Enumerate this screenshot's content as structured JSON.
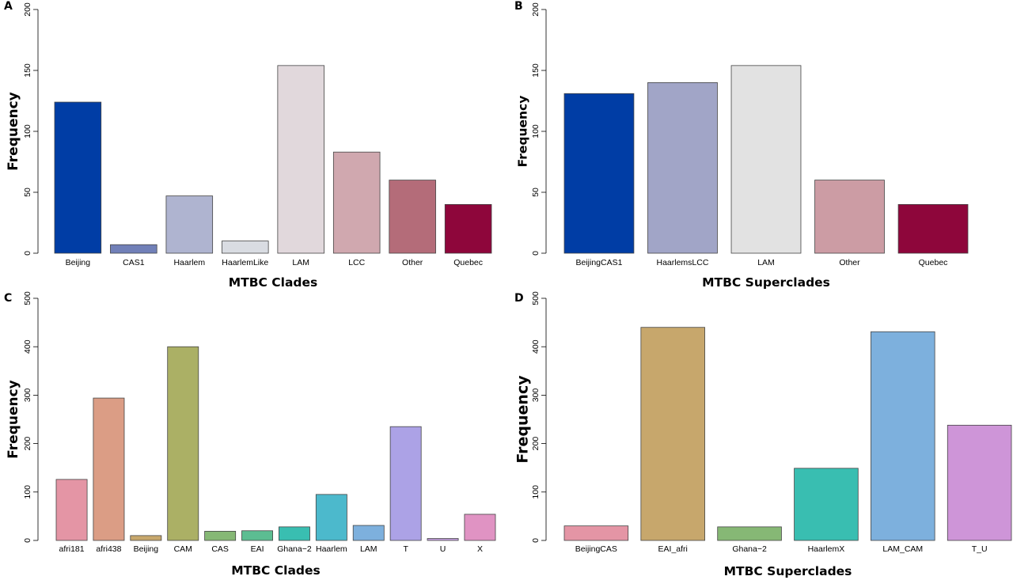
{
  "chart_data": [
    {
      "panel": "A",
      "type": "bar",
      "categories": [
        "Beijing",
        "CAS1",
        "Haarlem",
        "HaarlemLike",
        "LAM",
        "LCC",
        "Other",
        "Quebec"
      ],
      "values": [
        124,
        7,
        47,
        10,
        154,
        83,
        60,
        40
      ],
      "colors": [
        "#003DA5",
        "#7180B8",
        "#AFB4D0",
        "#D9DCE2",
        "#E1D8DC",
        "#D0A8AF",
        "#B46C79",
        "#8E063B"
      ],
      "xlabel": "MTBC Clades",
      "ylabel": "Frequency",
      "ylim": [
        0,
        200
      ],
      "yticks": [
        0,
        50,
        100,
        150,
        200
      ],
      "grid": false
    },
    {
      "panel": "B",
      "type": "bar",
      "categories": [
        "BeijingCAS1",
        "HaarlemsLCC",
        "LAM",
        "Other",
        "Quebec"
      ],
      "values": [
        131,
        140,
        154,
        60,
        40
      ],
      "colors": [
        "#003DA5",
        "#A1A5C7",
        "#E2E2E2",
        "#CC9CA4",
        "#8E063B"
      ],
      "xlabel": "MTBC Superclades",
      "ylabel": "Frequency",
      "ylim": [
        0,
        200
      ],
      "yticks": [
        0,
        50,
        100,
        150,
        200
      ],
      "grid": false
    },
    {
      "panel": "C",
      "type": "bar",
      "categories": [
        "afri181",
        "afri438",
        "Beijing",
        "CAM",
        "CAS",
        "EAI",
        "Ghana−2",
        "Haarlem",
        "LAM",
        "T",
        "U",
        "X"
      ],
      "values": [
        126,
        294,
        10,
        400,
        19,
        20,
        28,
        95,
        31,
        235,
        4,
        54
      ],
      "colors": [
        "#E495A5",
        "#DB9D85",
        "#C7A76C",
        "#ABB065",
        "#86B875",
        "#5CBD92",
        "#39BEB1",
        "#4CB9CC",
        "#7DB0DD",
        "#ACA2E6",
        "#C29EDE",
        "#E093C3"
      ],
      "xlabel": "MTBC Clades",
      "ylabel": "Frequency",
      "ylim": [
        0,
        500
      ],
      "yticks": [
        0,
        100,
        200,
        300,
        400,
        500
      ],
      "grid": false
    },
    {
      "panel": "D",
      "type": "bar",
      "categories": [
        "BeijingCAS",
        "EAI_afri",
        "Ghana−2",
        "HaarlemX",
        "LAM_CAM",
        "T_U"
      ],
      "values": [
        30,
        440,
        28,
        149,
        431,
        238
      ],
      "colors": [
        "#E495A5",
        "#C7A76C",
        "#86B875",
        "#39BEB1",
        "#7DB0DD",
        "#CE95D8"
      ],
      "xlabel": "MTBC Superclades",
      "ylabel": "Frequency",
      "ylim": [
        0,
        500
      ],
      "yticks": [
        0,
        100,
        200,
        300,
        400,
        500
      ],
      "grid": false
    }
  ]
}
